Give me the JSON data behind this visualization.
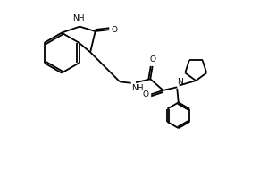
{
  "bg_color": "#ffffff",
  "line_color": "#000000",
  "line_width": 1.3,
  "font_size": 6.5,
  "fig_width": 3.0,
  "fig_height": 2.0,
  "dpi": 100,
  "xlim": [
    0,
    10
  ],
  "ylim": [
    0,
    6.67
  ]
}
